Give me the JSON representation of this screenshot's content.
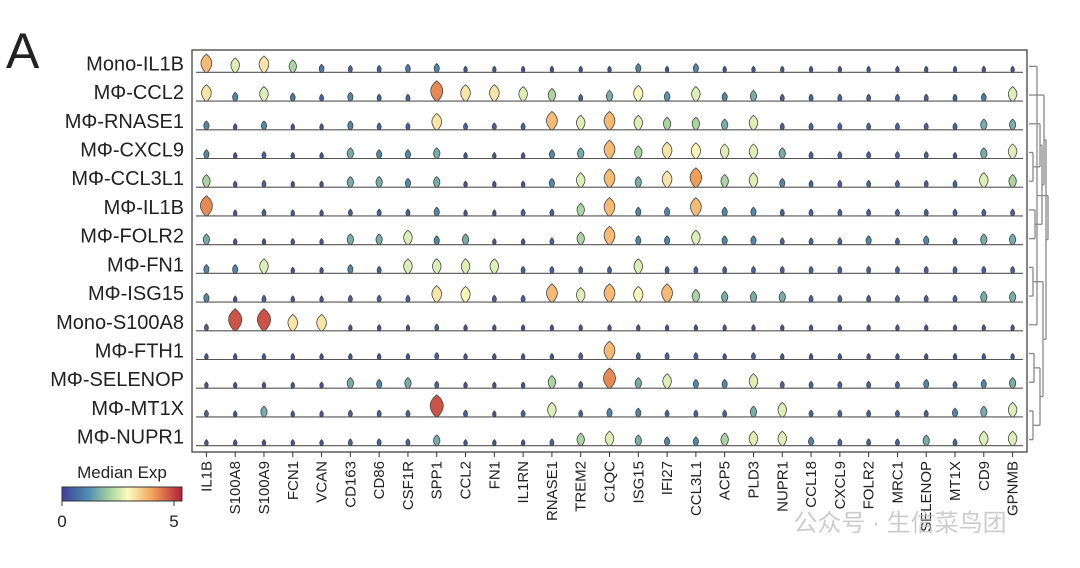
{
  "chart_data": {
    "type": "violin",
    "panel_label": "A",
    "rows": [
      "Mono-IL1B",
      "MΦ-CCL2",
      "MΦ-RNASE1",
      "MΦ-CXCL9",
      "MΦ-CCL3L1",
      "MΦ-IL1B",
      "MΦ-FOLR2",
      "MΦ-FN1",
      "MΦ-ISG15",
      "Mono-S100A8",
      "MΦ-FTH1",
      "MΦ-SELENOP",
      "MΦ-MT1X",
      "MΦ-NUPR1"
    ],
    "genes": [
      "IL1B",
      "S100A8",
      "S100A9",
      "FCN1",
      "VCAN",
      "CD163",
      "CD86",
      "CSF1R",
      "SPP1",
      "CCL2",
      "FN1",
      "IL1RN",
      "RNASE1",
      "TREM2",
      "C1QC",
      "ISG15",
      "IFI27",
      "CCL3L1",
      "ACP5",
      "PLD3",
      "NUPR1",
      "CCL18",
      "CXCL9",
      "FOLR2",
      "MRC1",
      "SELENOP",
      "MT1X",
      "CD9",
      "GPNMB"
    ],
    "median_exp": [
      [
        3.5,
        2.5,
        3.0,
        2.0,
        0.8,
        0.5,
        0.5,
        0.8,
        1.0,
        0.3,
        0.3,
        0.3,
        0.3,
        0.3,
        0.3,
        1.0,
        0.3,
        1.0,
        0.3,
        0.3,
        0.3,
        0.3,
        0.3,
        0.3,
        0.3,
        0.3,
        0.3,
        0.3,
        0.3
      ],
      [
        3.0,
        1.0,
        2.5,
        0.8,
        0.5,
        1.0,
        0.5,
        0.5,
        4.0,
        3.0,
        3.0,
        2.5,
        2.0,
        0.5,
        1.5,
        2.8,
        1.2,
        2.5,
        1.0,
        1.5,
        0.5,
        0.5,
        0.5,
        0.5,
        0.5,
        0.5,
        0.5,
        0.8,
        2.5
      ],
      [
        1.0,
        0.3,
        1.0,
        0.3,
        0.3,
        1.0,
        0.5,
        0.5,
        3.0,
        0.5,
        0.5,
        0.5,
        3.5,
        2.5,
        3.5,
        2.5,
        2.0,
        2.0,
        1.5,
        2.5,
        0.5,
        0.5,
        0.5,
        0.5,
        0.5,
        0.5,
        0.5,
        1.5,
        1.5
      ],
      [
        1.0,
        0.3,
        0.5,
        0.3,
        0.3,
        1.5,
        1.0,
        1.0,
        1.5,
        0.3,
        0.3,
        0.3,
        1.0,
        1.5,
        3.5,
        2.0,
        3.0,
        2.8,
        2.5,
        2.5,
        1.5,
        0.5,
        0.5,
        0.5,
        0.5,
        0.5,
        0.3,
        1.5,
        2.5
      ],
      [
        2.0,
        0.3,
        0.5,
        0.3,
        0.3,
        1.5,
        1.5,
        1.0,
        1.5,
        0.3,
        0.3,
        0.3,
        1.0,
        2.5,
        3.5,
        1.5,
        3.0,
        3.8,
        2.0,
        2.5,
        1.0,
        0.5,
        0.5,
        0.5,
        0.5,
        0.5,
        0.5,
        2.5,
        2.0
      ],
      [
        4.0,
        0.3,
        0.5,
        0.3,
        0.3,
        0.5,
        0.5,
        0.5,
        1.0,
        0.3,
        0.3,
        0.5,
        0.5,
        2.0,
        3.5,
        1.0,
        1.0,
        3.5,
        1.0,
        1.0,
        0.5,
        0.5,
        0.5,
        0.5,
        0.5,
        0.5,
        0.5,
        0.5,
        0.5
      ],
      [
        1.5,
        0.3,
        0.3,
        0.3,
        0.3,
        1.5,
        1.5,
        2.5,
        1.0,
        1.5,
        0.3,
        0.3,
        0.5,
        2.0,
        3.5,
        1.0,
        1.0,
        2.5,
        1.0,
        1.0,
        0.5,
        0.5,
        0.5,
        1.0,
        0.5,
        1.0,
        0.5,
        1.5,
        1.5
      ],
      [
        1.0,
        1.0,
        2.5,
        0.3,
        0.3,
        1.0,
        0.5,
        2.5,
        2.5,
        2.5,
        2.5,
        0.5,
        0.5,
        0.5,
        0.5,
        2.5,
        0.5,
        0.5,
        0.5,
        0.5,
        0.5,
        0.5,
        0.5,
        0.5,
        0.5,
        0.5,
        0.5,
        0.5,
        0.5
      ],
      [
        1.0,
        0.3,
        0.5,
        0.3,
        0.3,
        0.5,
        0.5,
        0.5,
        3.0,
        2.8,
        0.5,
        0.5,
        3.5,
        2.5,
        3.5,
        2.8,
        3.5,
        2.0,
        1.5,
        1.5,
        1.5,
        0.5,
        0.5,
        0.5,
        0.5,
        0.5,
        0.5,
        1.5,
        1.5
      ],
      [
        0.5,
        4.5,
        4.5,
        3.0,
        3.0,
        0.3,
        0.3,
        0.3,
        0.5,
        0.3,
        0.3,
        0.3,
        0.3,
        0.3,
        0.3,
        0.3,
        0.3,
        0.3,
        0.3,
        0.3,
        0.3,
        0.3,
        0.3,
        0.3,
        0.3,
        0.3,
        0.3,
        0.3,
        0.3
      ],
      [
        0.3,
        0.3,
        0.3,
        0.3,
        0.3,
        0.3,
        0.3,
        0.3,
        0.5,
        0.3,
        0.3,
        0.3,
        0.3,
        0.5,
        3.5,
        0.5,
        0.5,
        0.5,
        0.3,
        0.5,
        0.3,
        0.3,
        0.3,
        0.3,
        0.3,
        0.3,
        0.3,
        0.3,
        0.3
      ],
      [
        0.3,
        0.3,
        0.3,
        0.3,
        0.3,
        1.5,
        1.0,
        1.5,
        0.5,
        0.3,
        0.3,
        0.3,
        2.0,
        0.5,
        4.0,
        1.5,
        2.5,
        1.0,
        1.0,
        2.5,
        0.5,
        0.5,
        0.5,
        0.5,
        0.5,
        1.0,
        0.5,
        1.0,
        1.5
      ],
      [
        0.5,
        0.3,
        1.5,
        0.3,
        0.3,
        0.5,
        0.5,
        0.5,
        4.5,
        0.5,
        0.3,
        0.5,
        2.5,
        0.5,
        1.0,
        1.0,
        0.5,
        0.5,
        0.5,
        1.5,
        2.5,
        0.5,
        0.5,
        0.5,
        0.5,
        0.5,
        1.0,
        1.5,
        2.5
      ],
      [
        0.3,
        0.3,
        0.3,
        0.3,
        0.3,
        0.5,
        0.5,
        0.5,
        1.5,
        0.3,
        0.3,
        0.3,
        0.5,
        2.0,
        2.5,
        1.5,
        1.0,
        1.0,
        2.0,
        2.5,
        2.5,
        1.0,
        0.5,
        0.5,
        0.5,
        1.5,
        0.5,
        2.5,
        2.5
      ]
    ],
    "colorbar": {
      "label": "Median Exp",
      "min": "0",
      "max": "5",
      "vmin": 0,
      "vmax": 5
    },
    "dendrogram": true
  },
  "watermark": "公众号 · 生信菜鸟团",
  "colors": {
    "low": "#3f3f9b",
    "mid": "#fbfbbe",
    "high": "#b01e3a",
    "dendrogram": "#888888"
  }
}
